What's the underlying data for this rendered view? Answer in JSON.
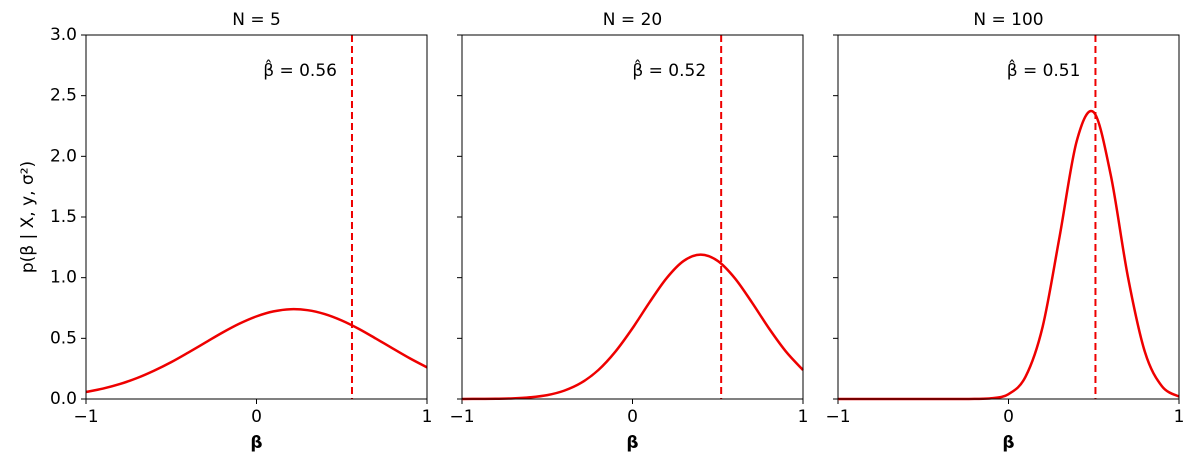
{
  "chart_data": [
    {
      "type": "line",
      "title": "N = 5",
      "xlabel": "β",
      "ylabel": "p(β | X, y, σ²)",
      "x": [
        -1,
        -0.9,
        -0.8,
        -0.7,
        -0.6,
        -0.5,
        -0.4,
        -0.3,
        -0.2,
        -0.1,
        0,
        0.1,
        0.2,
        0.3,
        0.4,
        0.5,
        0.6,
        0.7,
        0.8,
        0.9,
        1
      ],
      "series": [
        {
          "color": "#ee0000",
          "values": [
            0.058,
            0.086,
            0.124,
            0.173,
            0.234,
            0.304,
            0.383,
            0.465,
            0.547,
            0.621,
            0.681,
            0.722,
            0.74,
            0.732,
            0.7,
            0.647,
            0.578,
            0.498,
            0.416,
            0.335,
            0.261
          ]
        }
      ],
      "vline": {
        "value": 0.56,
        "label": "β̂ = 0.56",
        "color": "#ee0000"
      },
      "xlim": [
        -1,
        1
      ],
      "xticks": [
        {
          "value": -1,
          "label": "−1"
        },
        0,
        1
      ],
      "ylim": [
        0,
        3
      ],
      "yticks": [
        {
          "value": 0,
          "label": "0.0"
        },
        0.5,
        {
          "value": 1,
          "label": "1.0"
        },
        1.5,
        {
          "value": 2,
          "label": "2.0"
        },
        2.5,
        {
          "value": 3,
          "label": "3.0"
        }
      ],
      "ytick_labels": true
    },
    {
      "type": "line",
      "title": "N = 20",
      "xlabel": "β",
      "x": [
        -1,
        -0.9,
        -0.8,
        -0.7,
        -0.6,
        -0.5,
        -0.4,
        -0.3,
        -0.2,
        -0.1,
        0,
        0.1,
        0.2,
        0.3,
        0.4,
        0.5,
        0.6,
        0.7,
        0.8,
        0.9,
        1
      ],
      "series": [
        {
          "color": "#ee0000",
          "values": [
            0.0,
            0.001,
            0.002,
            0.005,
            0.014,
            0.032,
            0.069,
            0.134,
            0.239,
            0.391,
            0.583,
            0.797,
            0.996,
            1.138,
            1.19,
            1.138,
            0.996,
            0.797,
            0.583,
            0.391,
            0.239
          ]
        }
      ],
      "vline": {
        "value": 0.52,
        "label": "β̂ = 0.52",
        "color": "#ee0000"
      },
      "xlim": [
        -1,
        1
      ],
      "xticks": [
        {
          "value": -1,
          "label": "−1"
        },
        0,
        1
      ],
      "ylim": [
        0,
        3
      ],
      "yticks": [
        0,
        0.5,
        1,
        1.5,
        2,
        2.5,
        3
      ],
      "ytick_labels": false
    },
    {
      "type": "line",
      "title": "N = 100",
      "xlabel": "β",
      "x": [
        -1,
        -0.9,
        -0.8,
        -0.7,
        -0.6,
        -0.5,
        -0.4,
        -0.3,
        -0.2,
        -0.1,
        0,
        0.1,
        0.2,
        0.3,
        0.4,
        0.5,
        0.6,
        0.7,
        0.8,
        0.9,
        1
      ],
      "series": [
        {
          "color": "#ee0000",
          "values": [
            0,
            0,
            0,
            0,
            0,
            0,
            0,
            0,
            0.001,
            0.006,
            0.04,
            0.184,
            0.594,
            1.341,
            2.125,
            2.363,
            1.844,
            1.01,
            0.388,
            0.105,
            0.02
          ]
        }
      ],
      "vline": {
        "value": 0.51,
        "label": "β̂ = 0.51",
        "color": "#ee0000"
      },
      "xlim": [
        -1,
        1
      ],
      "xticks": [
        {
          "value": -1,
          "label": "−1"
        },
        0,
        1
      ],
      "ylim": [
        0,
        3
      ],
      "yticks": [
        0,
        0.5,
        1,
        1.5,
        2,
        2.5,
        3
      ],
      "ytick_labels": false
    }
  ]
}
